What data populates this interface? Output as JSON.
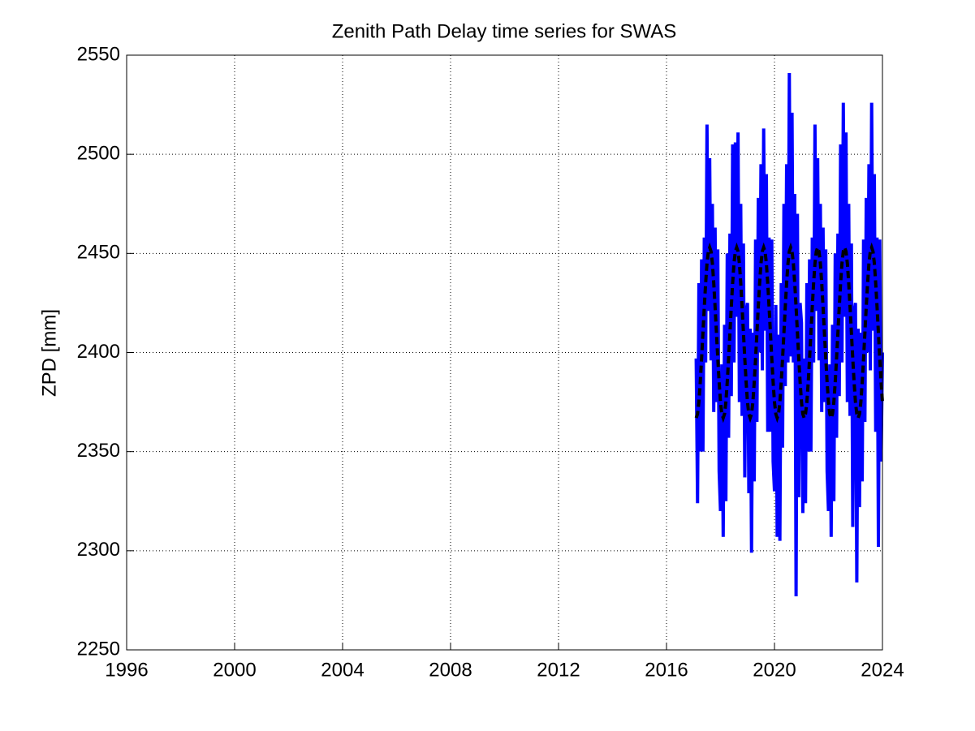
{
  "chart_data": {
    "type": "line",
    "title": "Zenith Path Delay time series for SWAS",
    "y_label": "ZPD [mm]",
    "xlim": [
      1996,
      2024
    ],
    "xticks": [
      1996,
      2000,
      2004,
      2008,
      2012,
      2016,
      2020,
      2024
    ],
    "ylim": [
      2250,
      2550
    ],
    "yticks": [
      2250,
      2300,
      2350,
      2400,
      2450,
      2500,
      2550
    ],
    "grid": true,
    "x": [
      2017.1,
      2017.15,
      2017.2,
      2017.25,
      2017.3,
      2017.35,
      2017.4,
      2017.45,
      2017.5,
      2017.55,
      2017.6,
      2017.65,
      2017.7,
      2017.75,
      2017.8,
      2017.85,
      2017.9,
      2017.95,
      2018,
      2018.05,
      2018.1,
      2018.15,
      2018.2,
      2018.25,
      2018.3,
      2018.35,
      2018.4,
      2018.45,
      2018.5,
      2018.55,
      2018.6,
      2018.65,
      2018.7,
      2018.75,
      2018.8,
      2018.85,
      2018.9,
      2018.95,
      2019,
      2019.05,
      2019.1,
      2019.15,
      2019.2,
      2019.25,
      2019.3,
      2019.35,
      2019.4,
      2019.45,
      2019.5,
      2019.55,
      2019.6,
      2019.65,
      2019.7,
      2019.75,
      2019.8,
      2019.85,
      2019.9,
      2019.95,
      2020,
      2020.05,
      2020.1,
      2020.15,
      2020.2,
      2020.25,
      2020.3,
      2020.35,
      2020.4,
      2020.45,
      2020.5,
      2020.55,
      2020.6,
      2020.65,
      2020.7,
      2020.75,
      2020.8,
      2020.85,
      2020.9,
      2020.95,
      2021,
      2021.05,
      2021.1,
      2021.15,
      2021.2,
      2021.25,
      2021.3,
      2021.35,
      2021.4,
      2021.45,
      2021.5,
      2021.55,
      2021.6,
      2021.65,
      2021.7,
      2021.75,
      2021.8,
      2021.85,
      2021.9,
      2021.95,
      2022,
      2022.05,
      2022.1,
      2022.15,
      2022.2,
      2022.25,
      2022.3,
      2022.35,
      2022.4,
      2022.45,
      2022.5,
      2022.55,
      2022.6,
      2022.65,
      2022.7,
      2022.75,
      2022.8,
      2022.85,
      2022.9,
      2022.95,
      2023,
      2023.05,
      2023.1,
      2023.15,
      2023.2,
      2023.25,
      2023.3,
      2023.35,
      2023.4,
      2023.45,
      2023.5,
      2023.55,
      2023.6,
      2023.65,
      2023.7,
      2023.75,
      2023.8,
      2023.85,
      2023.9,
      2023.95,
      2024
    ],
    "series": [
      {
        "color": "#0000ff",
        "dash": false,
        "values": [
          2397,
          2324,
          2435,
          2350,
          2447,
          2350,
          2458,
          2395,
          2515,
          2421,
          2498,
          2396,
          2475,
          2370,
          2463,
          2375,
          2452,
          2340,
          2320,
          2394,
          2307,
          2414,
          2325,
          2450,
          2357,
          2460,
          2378,
          2505,
          2395,
          2506,
          2418,
          2511,
          2375,
          2475,
          2368,
          2455,
          2337,
          2420,
          2425,
          2329,
          2412,
          2299,
          2410,
          2335,
          2457,
          2365,
          2478,
          2400,
          2495,
          2391,
          2513,
          2411,
          2490,
          2360,
          2458,
          2360,
          2457,
          2345,
          2330,
          2424,
          2307,
          2409,
          2305,
          2435,
          2352,
          2475,
          2383,
          2495,
          2395,
          2541,
          2398,
          2521,
          2395,
          2480,
          2277,
          2470,
          2327,
          2425,
          2415,
          2319,
          2397,
          2324,
          2435,
          2350,
          2447,
          2350,
          2458,
          2395,
          2515,
          2421,
          2498,
          2396,
          2475,
          2370,
          2463,
          2375,
          2452,
          2340,
          2320,
          2394,
          2307,
          2414,
          2325,
          2450,
          2357,
          2460,
          2378,
          2505,
          2395,
          2526,
          2418,
          2511,
          2375,
          2475,
          2368,
          2455,
          2312,
          2420,
          2425,
          2284,
          2412,
          2322,
          2410,
          2335,
          2457,
          2365,
          2478,
          2400,
          2495,
          2391,
          2526,
          2411,
          2490,
          2360,
          2458,
          2302,
          2457,
          2345,
          2400
        ]
      },
      {
        "color": "#000000",
        "dash": true,
        "values": [
          2367,
          2369,
          2375,
          2385,
          2397,
          2410,
          2423,
          2435,
          2445,
          2451,
          2453,
          2451,
          2445,
          2435,
          2423,
          2410,
          2397,
          2385,
          2375,
          2369,
          2367,
          2369,
          2375,
          2385,
          2397,
          2410,
          2423,
          2435,
          2445,
          2451,
          2453,
          2451,
          2445,
          2435,
          2423,
          2410,
          2397,
          2385,
          2375,
          2369,
          2367,
          2369,
          2375,
          2385,
          2397,
          2410,
          2423,
          2435,
          2445,
          2451,
          2453,
          2451,
          2445,
          2435,
          2423,
          2410,
          2397,
          2385,
          2375,
          2369,
          2367,
          2369,
          2375,
          2385,
          2397,
          2410,
          2423,
          2435,
          2445,
          2451,
          2453,
          2451,
          2445,
          2435,
          2423,
          2410,
          2397,
          2385,
          2375,
          2369,
          2367,
          2369,
          2375,
          2385,
          2397,
          2410,
          2423,
          2435,
          2445,
          2451,
          2453,
          2451,
          2445,
          2435,
          2423,
          2410,
          2397,
          2385,
          2375,
          2369,
          2367,
          2369,
          2375,
          2385,
          2397,
          2410,
          2423,
          2435,
          2445,
          2451,
          2453,
          2451,
          2445,
          2435,
          2423,
          2410,
          2397,
          2385,
          2375,
          2369,
          2367,
          2369,
          2375,
          2385,
          2397,
          2410,
          2423,
          2435,
          2445,
          2451,
          2453,
          2451,
          2445,
          2435,
          2423,
          2410,
          2397,
          2385,
          2375
        ]
      }
    ]
  }
}
